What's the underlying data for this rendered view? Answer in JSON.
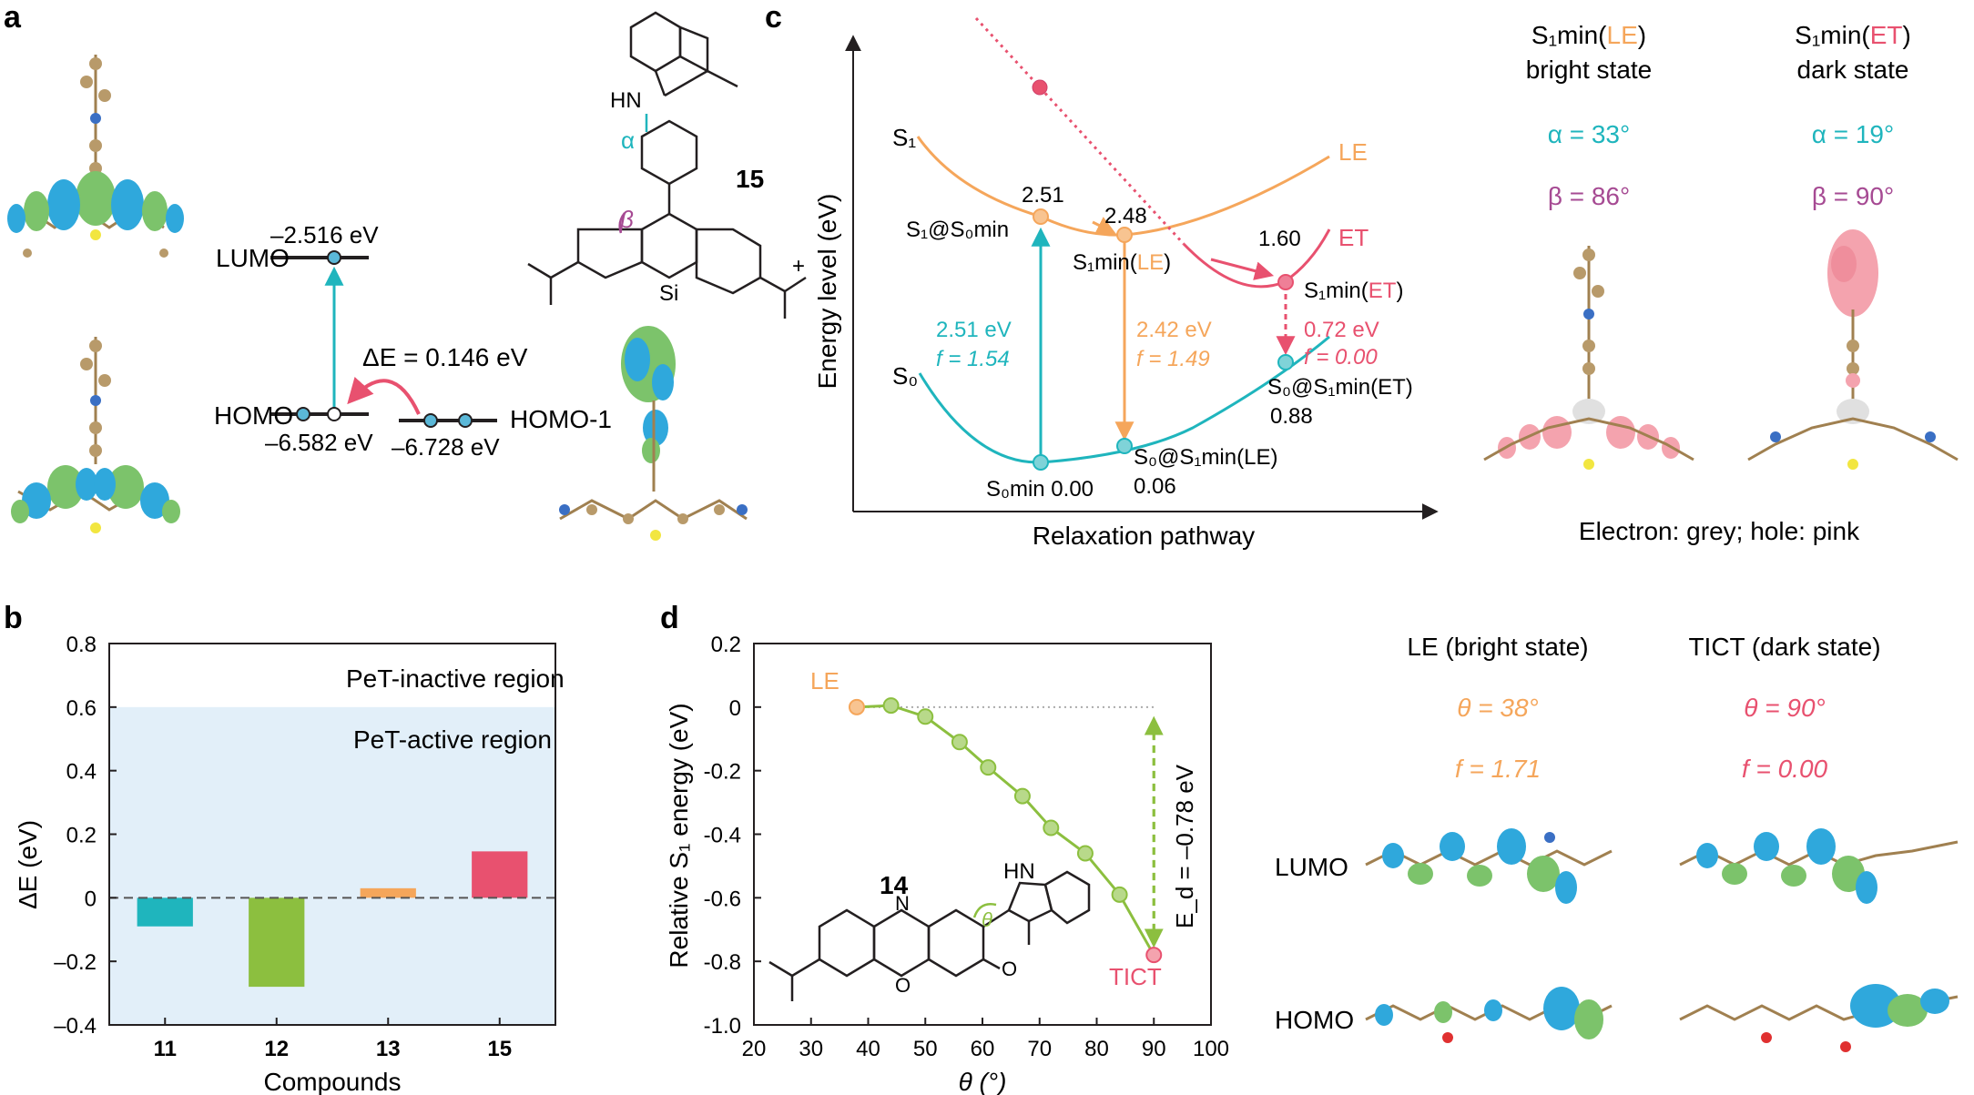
{
  "colors": {
    "teal": "#1fb5bd",
    "orange": "#f5a65b",
    "pink": "#e8516f",
    "magenta": "#a64a93",
    "green": "#8cbf3f",
    "blue_region": "#e2eff9",
    "orb_blue": "#2fa8dc",
    "orb_green": "#7cc36b",
    "hole_pink": "#f4a3ae"
  },
  "panel_a": {
    "label": "a",
    "lumo_label": "LUMO",
    "lumo_energy": "–2.516 eV",
    "homo_label": "HOMO",
    "homo_energy": "–6.582 eV",
    "homo1_label": "HOMO-1",
    "homo1_energy": "–6.728 eV",
    "delta_e": "ΔE = 0.146 eV",
    "compound": "15",
    "alpha": "α",
    "beta": "β",
    "nh": "HN",
    "si": "Si",
    "plus": "+"
  },
  "panel_b": {
    "label": "b",
    "inactive_region": "PeT-inactive region",
    "active_region": "PeT-active region",
    "ytick_labels": [
      "0.8",
      "0.6",
      "0.4",
      "0.2",
      "0",
      "–0.2",
      "–0.4"
    ]
  },
  "panel_c": {
    "label": "c",
    "xlabel": "Relaxation pathway",
    "ylabel": "Energy level (eV)",
    "curve_s1": "S₁",
    "curve_s0": "S₀",
    "curve_le": "LE",
    "curve_et": "ET",
    "v251": "2.51",
    "v248": "2.48",
    "v160": "1.60",
    "s1_at_s0min": "S₁@S₀min",
    "s1min_le_prefix": "S₁min(",
    "le_word": "LE",
    "close_paren": ")",
    "s1min_et_prefix": "S₁min(",
    "et_word": "ET",
    "abs_energy": "2.51 eV",
    "abs_f": "f = 1.54",
    "em_energy": "2.42 eV",
    "em_f": "f = 1.49",
    "dark_energy": "0.72 eV",
    "dark_f": "f = 0.00",
    "s0min": "S₀min 0.00",
    "s0_s1min_le": "S₀@S₁min(LE)",
    "s0_s1min_le_val": "0.06",
    "s0_s1min_et": "S₀@S₁min(ET)",
    "s0_s1min_et_val": "0.88",
    "bright_prefix": "S₁min(",
    "bright_word": "LE",
    "bright_state": "bright state",
    "dark_prefix": "S₁min(",
    "dark_word": "ET",
    "dark_state": "dark state",
    "alpha_bright": "α = 33°",
    "beta_bright": "β = 86°",
    "alpha_dark": "α = 19°",
    "beta_dark": "β = 90°",
    "legend": "Electron: grey; hole: pink"
  },
  "panel_d": {
    "label": "d",
    "le_marker": "LE",
    "tict_marker": "TICT",
    "ed_label": "E_d = –0.78 eV",
    "compound": "14",
    "theta_symbol": "θ",
    "le_title": "LE (bright state)",
    "tict_title": "TICT (dark state)",
    "le_theta": "θ = 38°",
    "tict_theta": "θ = 90°",
    "le_f": "f = 1.71",
    "tict_f": "f = 0.00",
    "lumo_label": "LUMO",
    "homo_label": "HOMO",
    "hn": "HN",
    "n_atom": "N",
    "o_atom": "O"
  },
  "chart_data": [
    {
      "type": "bar",
      "panel": "b",
      "categories": [
        "11",
        "12",
        "13",
        "15"
      ],
      "values": [
        -0.09,
        -0.28,
        0.03,
        0.146
      ],
      "colors": [
        "#1fb5bd",
        "#8cbf3f",
        "#f5a65b",
        "#e8516f"
      ],
      "xlabel": "Compounds",
      "ylabel": "ΔE (eV)",
      "ylim": [
        -0.4,
        0.8
      ],
      "yticks": [
        -0.4,
        -0.2,
        0,
        0.2,
        0.4,
        0.6,
        0.8
      ],
      "region_boundary": 0.6,
      "zero_line": "dashed"
    },
    {
      "type": "line",
      "panel": "d",
      "x": [
        38,
        44,
        50,
        56,
        61,
        67,
        72,
        78,
        84,
        90
      ],
      "y": [
        0.0,
        0.005,
        -0.03,
        -0.11,
        -0.19,
        -0.28,
        -0.38,
        -0.46,
        -0.59,
        -0.78
      ],
      "xlabel": "θ (°)",
      "ylabel": "Relative S₁ energy (eV)",
      "xlim": [
        20,
        100
      ],
      "ylim": [
        -1.0,
        0.2
      ],
      "xticks": [
        20,
        30,
        40,
        50,
        60,
        70,
        80,
        90,
        100
      ],
      "yticks": [
        -1.0,
        -0.8,
        -0.6,
        -0.4,
        -0.2,
        0,
        0.2
      ],
      "color": "#8cbf3f",
      "reference_line": 0,
      "ed": -0.78
    }
  ]
}
